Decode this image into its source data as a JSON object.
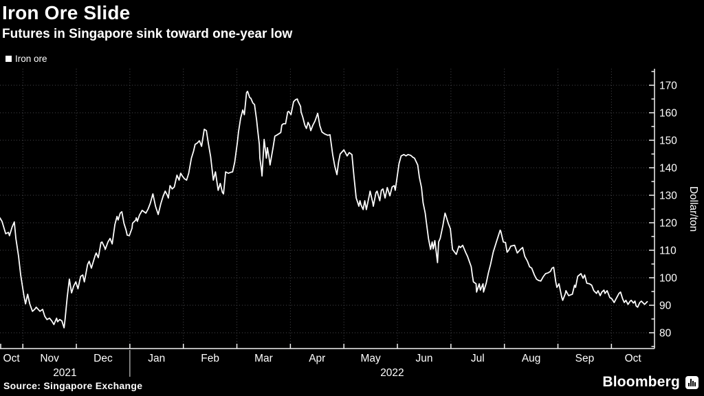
{
  "header": {
    "title": "Iron Ore Slide",
    "subtitle": "Futures in Singapore sink toward one-year low"
  },
  "legend": {
    "label": "Iron ore",
    "swatch_color": "#ffffff"
  },
  "footer": {
    "source": "Source: Singapore Exchange",
    "brand": "Bloomberg"
  },
  "colors": {
    "background": "#000000",
    "foreground": "#ffffff",
    "grid": "#47474c",
    "axis": "#f2f2f2",
    "line": "#ffffff"
  },
  "chart_data": {
    "type": "line",
    "title": "Iron Ore Slide",
    "series_name": "Iron ore",
    "ylabel": "Dollar/ton",
    "ylim": [
      75,
      176
    ],
    "y_ticks": [
      80,
      90,
      100,
      110,
      120,
      130,
      140,
      150,
      160,
      170
    ],
    "grid": "dotted",
    "legend_position": "top-left",
    "x_unit": "months since 2021-10-01 (0 = Oct 1 2021, 12 = Oct 1 2022)",
    "x_month_labels": [
      "Oct",
      "Nov",
      "Dec",
      "Jan",
      "Feb",
      "Mar",
      "Apr",
      "May",
      "Jun",
      "Jul",
      "Aug",
      "Sep",
      "Oct"
    ],
    "year_labels": [
      "2021",
      "2022"
    ],
    "year_divider_at_month": 3,
    "x_range": [
      0.57,
      12.8
    ],
    "points": [
      [
        0.57,
        121.8
      ],
      [
        0.61,
        120.5
      ],
      [
        0.68,
        116
      ],
      [
        0.73,
        116.5
      ],
      [
        0.75,
        115.3
      ],
      [
        0.8,
        118.5
      ],
      [
        0.84,
        120.3
      ],
      [
        0.87,
        114.3
      ],
      [
        0.92,
        107.8
      ],
      [
        0.96,
        101
      ],
      [
        1.0,
        96
      ],
      [
        1.02,
        93.5
      ],
      [
        1.05,
        90.5
      ],
      [
        1.09,
        94
      ],
      [
        1.13,
        90.5
      ],
      [
        1.18,
        87.8
      ],
      [
        1.22,
        88.5
      ],
      [
        1.25,
        89.3
      ],
      [
        1.32,
        87.8
      ],
      [
        1.37,
        88.5
      ],
      [
        1.41,
        86
      ],
      [
        1.45,
        84.8
      ],
      [
        1.5,
        85.3
      ],
      [
        1.54,
        84.3
      ],
      [
        1.58,
        83
      ],
      [
        1.63,
        85.3
      ],
      [
        1.65,
        84
      ],
      [
        1.69,
        84.8
      ],
      [
        1.73,
        84.3
      ],
      [
        1.77,
        81.8
      ],
      [
        1.79,
        85
      ],
      [
        1.83,
        93
      ],
      [
        1.87,
        99.5
      ],
      [
        1.91,
        94.5
      ],
      [
        1.95,
        97
      ],
      [
        1.99,
        98.5
      ],
      [
        2.03,
        96
      ],
      [
        2.08,
        100.5
      ],
      [
        2.12,
        101
      ],
      [
        2.15,
        98.5
      ],
      [
        2.21,
        104.8
      ],
      [
        2.24,
        106
      ],
      [
        2.28,
        103.5
      ],
      [
        2.35,
        108
      ],
      [
        2.37,
        109
      ],
      [
        2.41,
        107.3
      ],
      [
        2.46,
        112.8
      ],
      [
        2.48,
        113
      ],
      [
        2.53,
        111
      ],
      [
        2.54,
        110.3
      ],
      [
        2.59,
        113
      ],
      [
        2.63,
        114.3
      ],
      [
        2.67,
        112.3
      ],
      [
        2.72,
        119.3
      ],
      [
        2.76,
        122.3
      ],
      [
        2.78,
        121
      ],
      [
        2.82,
        123.5
      ],
      [
        2.85,
        124
      ],
      [
        2.89,
        119.8
      ],
      [
        2.93,
        117.3
      ],
      [
        2.95,
        115.5
      ],
      [
        2.99,
        115.3
      ],
      [
        3.04,
        118
      ],
      [
        3.05,
        119.8
      ],
      [
        3.11,
        121
      ],
      [
        3.12,
        121.8
      ],
      [
        3.14,
        120.5
      ],
      [
        3.18,
        122.8
      ],
      [
        3.23,
        124.5
      ],
      [
        3.3,
        123.5
      ],
      [
        3.34,
        125
      ],
      [
        3.38,
        127
      ],
      [
        3.43,
        130.5
      ],
      [
        3.48,
        126
      ],
      [
        3.53,
        123
      ],
      [
        3.58,
        127
      ],
      [
        3.62,
        129.5
      ],
      [
        3.66,
        131.5
      ],
      [
        3.7,
        130
      ],
      [
        3.72,
        129
      ],
      [
        3.75,
        133.5
      ],
      [
        3.79,
        132.3
      ],
      [
        3.83,
        133
      ],
      [
        3.88,
        137.3
      ],
      [
        3.92,
        135.5
      ],
      [
        3.95,
        138
      ],
      [
        3.98,
        137
      ],
      [
        4.02,
        136
      ],
      [
        4.06,
        135.5
      ],
      [
        4.1,
        138
      ],
      [
        4.15,
        143.5
      ],
      [
        4.19,
        146
      ],
      [
        4.22,
        148.5
      ],
      [
        4.26,
        149
      ],
      [
        4.3,
        149.8
      ],
      [
        4.34,
        147.8
      ],
      [
        4.39,
        154
      ],
      [
        4.43,
        153.5
      ],
      [
        4.47,
        148.5
      ],
      [
        4.51,
        144
      ],
      [
        4.53,
        140.5
      ],
      [
        4.56,
        135.5
      ],
      [
        4.6,
        138.5
      ],
      [
        4.65,
        131.8
      ],
      [
        4.69,
        134.3
      ],
      [
        4.73,
        131
      ],
      [
        4.75,
        130.5
      ],
      [
        4.79,
        138.5
      ],
      [
        4.84,
        138
      ],
      [
        4.88,
        138.3
      ],
      [
        4.92,
        138.5
      ],
      [
        4.96,
        142
      ],
      [
        5.01,
        149.3
      ],
      [
        5.03,
        153
      ],
      [
        5.07,
        158
      ],
      [
        5.11,
        161
      ],
      [
        5.14,
        159.3
      ],
      [
        5.18,
        167.3
      ],
      [
        5.2,
        167.8
      ],
      [
        5.24,
        165.5
      ],
      [
        5.26,
        165.3
      ],
      [
        5.3,
        163.5
      ],
      [
        5.33,
        163
      ],
      [
        5.37,
        157.3
      ],
      [
        5.39,
        153.5
      ],
      [
        5.42,
        148.5
      ],
      [
        5.43,
        143.5
      ],
      [
        5.46,
        139
      ],
      [
        5.47,
        137
      ],
      [
        5.51,
        150.3
      ],
      [
        5.54,
        145.3
      ],
      [
        5.55,
        143.5
      ],
      [
        5.57,
        147.3
      ],
      [
        5.6,
        144
      ],
      [
        5.62,
        141
      ],
      [
        5.68,
        147.8
      ],
      [
        5.71,
        151.5
      ],
      [
        5.74,
        151.8
      ],
      [
        5.78,
        152.3
      ],
      [
        5.82,
        152.8
      ],
      [
        5.84,
        155.5
      ],
      [
        5.87,
        156
      ],
      [
        5.91,
        156
      ],
      [
        5.95,
        160.3
      ],
      [
        5.97,
        160.5
      ],
      [
        6.01,
        159.3
      ],
      [
        6.06,
        164
      ],
      [
        6.1,
        164.8
      ],
      [
        6.13,
        165
      ],
      [
        6.14,
        164.3
      ],
      [
        6.19,
        162.3
      ],
      [
        6.2,
        160.3
      ],
      [
        6.23,
        158.5
      ],
      [
        6.27,
        155.5
      ],
      [
        6.3,
        154.3
      ],
      [
        6.33,
        156.5
      ],
      [
        6.36,
        155.3
      ],
      [
        6.38,
        153.5
      ],
      [
        6.42,
        155.5
      ],
      [
        6.46,
        157
      ],
      [
        6.51,
        159.8
      ],
      [
        6.55,
        155.3
      ],
      [
        6.59,
        153
      ],
      [
        6.64,
        152.3
      ],
      [
        6.7,
        151.8
      ],
      [
        6.74,
        152
      ],
      [
        6.79,
        144.8
      ],
      [
        6.83,
        140.5
      ],
      [
        6.87,
        137.5
      ],
      [
        6.9,
        142
      ],
      [
        6.93,
        145
      ],
      [
        7.0,
        146.5
      ],
      [
        7.06,
        144.3
      ],
      [
        7.1,
        145.5
      ],
      [
        7.15,
        144.8
      ],
      [
        7.19,
        136.5
      ],
      [
        7.23,
        129
      ],
      [
        7.26,
        127.3
      ],
      [
        7.28,
        126
      ],
      [
        7.3,
        128
      ],
      [
        7.32,
        126.5
      ],
      [
        7.36,
        124.8
      ],
      [
        7.39,
        128
      ],
      [
        7.42,
        124.8
      ],
      [
        7.48,
        130.5
      ],
      [
        7.49,
        131.5
      ],
      [
        7.54,
        127.3
      ],
      [
        7.55,
        126
      ],
      [
        7.6,
        131
      ],
      [
        7.62,
        131.5
      ],
      [
        7.67,
        128
      ],
      [
        7.7,
        131.8
      ],
      [
        7.73,
        132.3
      ],
      [
        7.77,
        129
      ],
      [
        7.81,
        132.8
      ],
      [
        7.86,
        129.8
      ],
      [
        7.9,
        133
      ],
      [
        7.94,
        133.5
      ],
      [
        7.96,
        131.8
      ],
      [
        8.03,
        141.5
      ],
      [
        8.07,
        144.3
      ],
      [
        8.12,
        144.8
      ],
      [
        8.16,
        144.3
      ],
      [
        8.2,
        144.8
      ],
      [
        8.25,
        144.5
      ],
      [
        8.29,
        143.8
      ],
      [
        8.32,
        143.5
      ],
      [
        8.38,
        141
      ],
      [
        8.41,
        136.5
      ],
      [
        8.45,
        132.8
      ],
      [
        8.48,
        127.3
      ],
      [
        8.52,
        123.5
      ],
      [
        8.54,
        120.3
      ],
      [
        8.58,
        114.3
      ],
      [
        8.62,
        110.3
      ],
      [
        8.65,
        113
      ],
      [
        8.67,
        110.5
      ],
      [
        8.7,
        113.5
      ],
      [
        8.75,
        105.5
      ],
      [
        8.77,
        113
      ],
      [
        8.8,
        114.3
      ],
      [
        8.85,
        119
      ],
      [
        8.89,
        123.5
      ],
      [
        8.9,
        123
      ],
      [
        8.95,
        119.8
      ],
      [
        8.99,
        117.8
      ],
      [
        9.03,
        110.3
      ],
      [
        9.1,
        108.5
      ],
      [
        9.15,
        111.5
      ],
      [
        9.18,
        111
      ],
      [
        9.22,
        111.8
      ],
      [
        9.28,
        109
      ],
      [
        9.31,
        107.8
      ],
      [
        9.38,
        104
      ],
      [
        9.4,
        101
      ],
      [
        9.42,
        98.5
      ],
      [
        9.47,
        97.8
      ],
      [
        9.48,
        94.8
      ],
      [
        9.53,
        97.8
      ],
      [
        9.55,
        95.5
      ],
      [
        9.6,
        97.8
      ],
      [
        9.61,
        94.8
      ],
      [
        9.66,
        98
      ],
      [
        9.7,
        101.8
      ],
      [
        9.74,
        104.8
      ],
      [
        9.79,
        109.3
      ],
      [
        9.85,
        113
      ],
      [
        9.92,
        117.3
      ],
      [
        9.93,
        117
      ],
      [
        9.98,
        113
      ],
      [
        10.02,
        112.8
      ],
      [
        10.05,
        109.3
      ],
      [
        10.08,
        110
      ],
      [
        10.12,
        111.5
      ],
      [
        10.19,
        111.8
      ],
      [
        10.24,
        109
      ],
      [
        10.3,
        110.3
      ],
      [
        10.34,
        111
      ],
      [
        10.38,
        107.8
      ],
      [
        10.43,
        106
      ],
      [
        10.47,
        104
      ],
      [
        10.51,
        103.5
      ],
      [
        10.56,
        101
      ],
      [
        10.6,
        99.5
      ],
      [
        10.64,
        99
      ],
      [
        10.68,
        98.8
      ],
      [
        10.73,
        100.5
      ],
      [
        10.77,
        101.5
      ],
      [
        10.82,
        101.8
      ],
      [
        10.86,
        102.3
      ],
      [
        10.89,
        103.5
      ],
      [
        10.92,
        103.8
      ],
      [
        10.96,
        98.5
      ],
      [
        10.98,
        96.5
      ],
      [
        11.02,
        97.8
      ],
      [
        11.07,
        93
      ],
      [
        11.09,
        91.8
      ],
      [
        11.14,
        94.3
      ],
      [
        11.15,
        95.3
      ],
      [
        11.2,
        93.5
      ],
      [
        11.24,
        93.8
      ],
      [
        11.27,
        94
      ],
      [
        11.31,
        97.3
      ],
      [
        11.33,
        96.5
      ],
      [
        11.37,
        100.5
      ],
      [
        11.4,
        101
      ],
      [
        11.43,
        101.5
      ],
      [
        11.47,
        99.8
      ],
      [
        11.5,
        101
      ],
      [
        11.54,
        98
      ],
      [
        11.59,
        97.8
      ],
      [
        11.63,
        97.3
      ],
      [
        11.67,
        95.3
      ],
      [
        11.72,
        94.3
      ],
      [
        11.75,
        95.3
      ],
      [
        11.79,
        93.5
      ],
      [
        11.82,
        94.8
      ],
      [
        11.86,
        95.5
      ],
      [
        11.88,
        94.3
      ],
      [
        11.92,
        95.3
      ],
      [
        11.97,
        92.8
      ],
      [
        12.01,
        92.3
      ],
      [
        12.05,
        91
      ],
      [
        12.1,
        92.8
      ],
      [
        12.14,
        94.3
      ],
      [
        12.17,
        94.8
      ],
      [
        12.21,
        92.3
      ],
      [
        12.24,
        91
      ],
      [
        12.27,
        91.8
      ],
      [
        12.31,
        90.3
      ],
      [
        12.35,
        91.5
      ],
      [
        12.37,
        91.8
      ],
      [
        12.41,
        90.8
      ],
      [
        12.44,
        91.5
      ],
      [
        12.46,
        89.8
      ],
      [
        12.49,
        89.3
      ],
      [
        12.53,
        91
      ],
      [
        12.56,
        91.5
      ],
      [
        12.62,
        90.3
      ],
      [
        12.67,
        91.3
      ]
    ]
  }
}
